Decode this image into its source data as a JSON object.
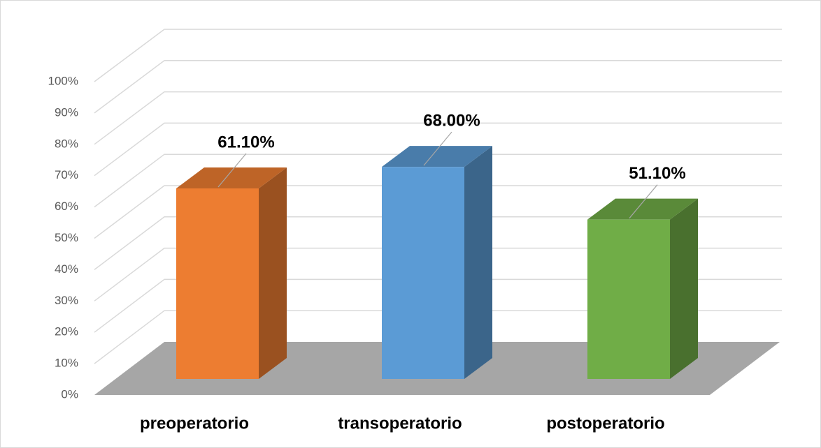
{
  "chart_data": {
    "type": "bar3d",
    "categories": [
      "preoperatorio",
      "transoperatorio",
      "postoperatorio"
    ],
    "values": [
      61.1,
      68,
      51.1
    ],
    "value_labels": [
      "61.10%",
      "68.00%",
      "51.10%"
    ],
    "colors": [
      "#ed7d31",
      "#5b9bd5",
      "#70ad47"
    ],
    "ylim": [
      0,
      100
    ],
    "yticks": [
      {
        "value": 0,
        "label": "0%"
      },
      {
        "value": 10,
        "label": "10%"
      },
      {
        "value": 20,
        "label": "20%"
      },
      {
        "value": 30,
        "label": "30%"
      },
      {
        "value": 40,
        "label": "40%"
      },
      {
        "value": 50,
        "label": "50%"
      },
      {
        "value": 60,
        "label": "60%"
      },
      {
        "value": 70,
        "label": "70%"
      },
      {
        "value": 80,
        "label": "80%"
      },
      {
        "value": 90,
        "label": "90%"
      },
      {
        "value": 100,
        "label": "100%"
      }
    ],
    "grid": true
  }
}
